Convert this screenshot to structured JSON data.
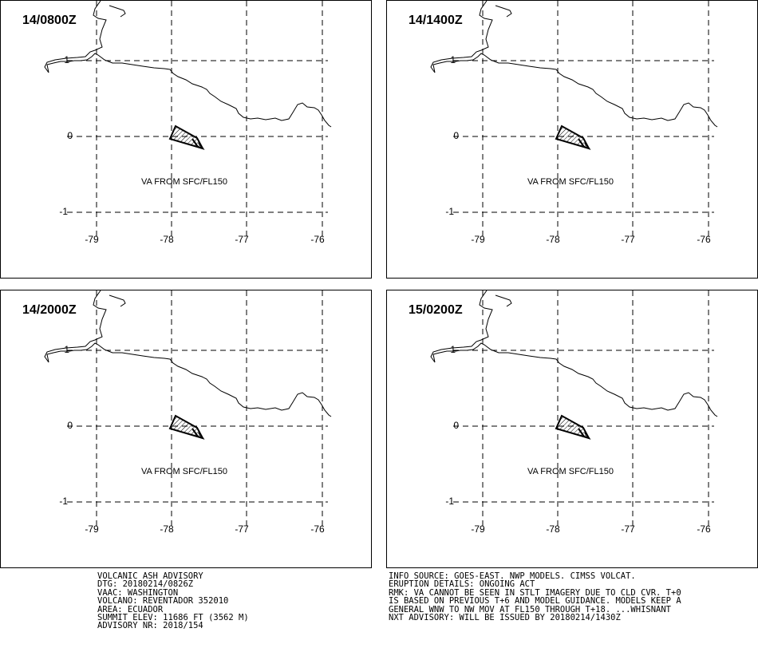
{
  "panels": [
    {
      "time": "14/0800Z",
      "va_label": "VA FROM SFC/FL150"
    },
    {
      "time": "14/1400Z",
      "va_label": "VA FROM SFC/FL150"
    },
    {
      "time": "14/2000Z",
      "va_label": "VA FROM SFC/FL150"
    },
    {
      "time": "15/0200Z",
      "va_label": "VA FROM SFC/FL150"
    }
  ],
  "axes": {
    "lat_labels": [
      "1",
      "0",
      "-1"
    ],
    "lon_labels": [
      "-79",
      "-78",
      "-77",
      "-76"
    ]
  },
  "advisory_left": [
    "VOLCANIC ASH ADVISORY",
    "DTG: 20180214/0826Z",
    "VAAC: WASHINGTON",
    "VOLCANO: REVENTADOR 352010",
    "AREA: ECUADOR",
    "SUMMIT ELEV: 11686 FT (3562 M)",
    "ADVISORY NR: 2018/154"
  ],
  "advisory_right": [
    "INFO SOURCE: GOES-EAST. NWP MODELS. CIMSS VOLCAT.",
    "ERUPTION DETAILS: ONGOING ACT",
    "RMK: VA CANNOT BE SEEN IN STLT IMAGERY DUE TO CLD CVR. T+0",
    "IS BASED ON PREVIOUS T+6 AND MODEL GUIDANCE. MODELS KEEP A",
    "GENERAL WNW TO NW MOV AT FL150 THROUGH T+18. ...WHISNANT",
    "NXT ADVISORY: WILL BE ISSUED BY 20180214/1430Z"
  ]
}
